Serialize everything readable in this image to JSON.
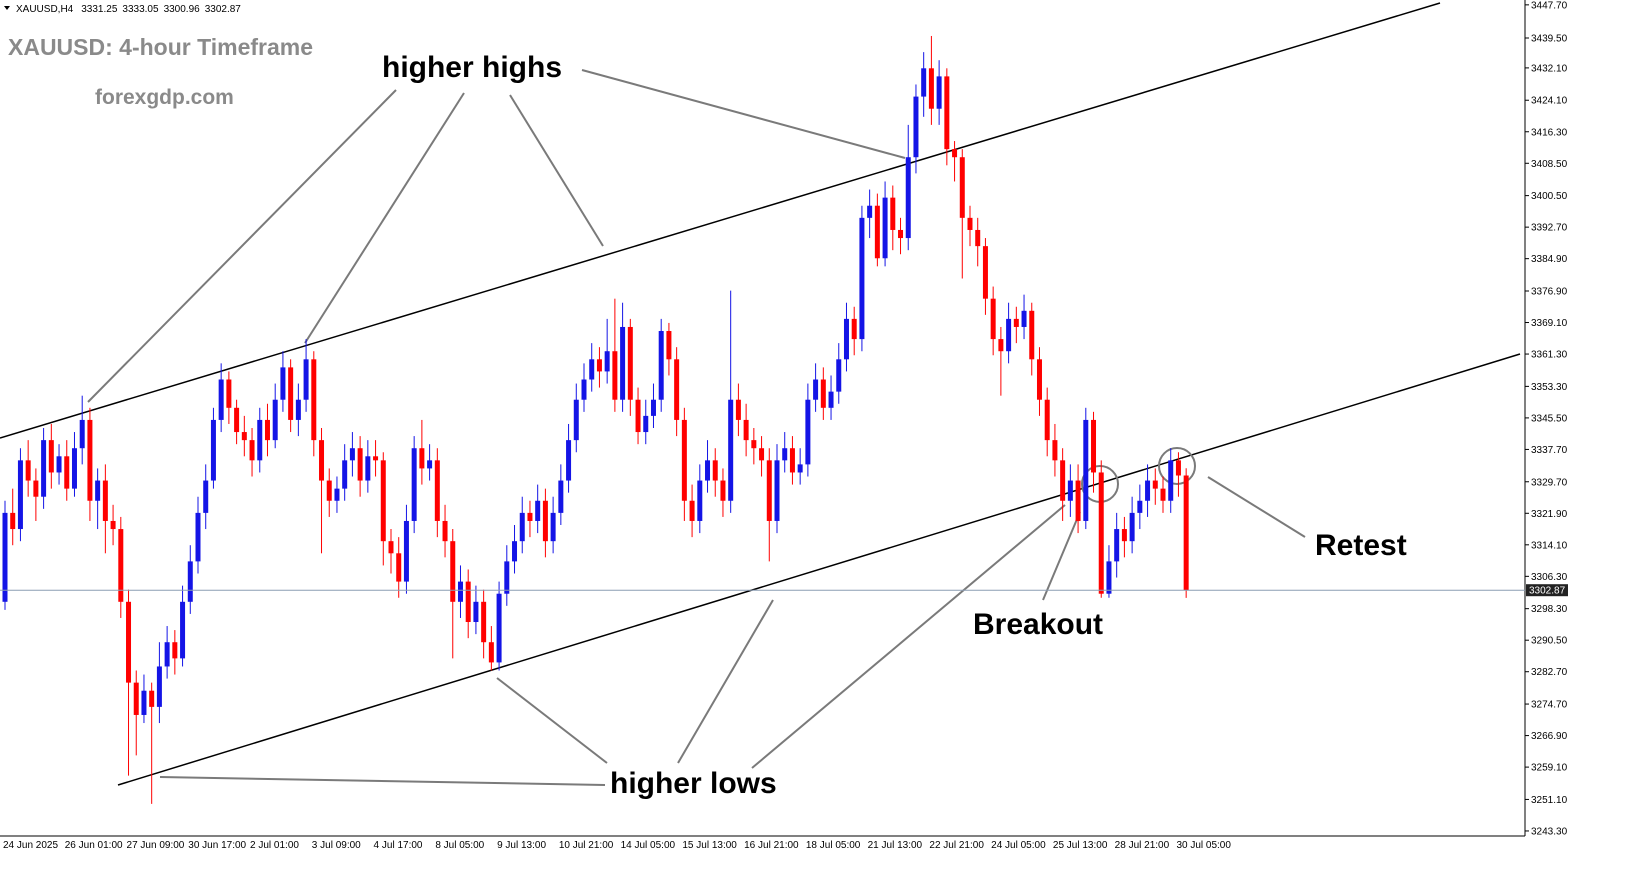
{
  "chart_data": {
    "type": "candlestick",
    "symbol": "XAUUSD,H4",
    "title": "XAUUSD: 4-hour Timeframe",
    "subtitle": "forexgdp.com",
    "annotations": {
      "higher_highs": "higher highs",
      "higher_lows": "higher lows",
      "breakout": "Breakout",
      "retest": "Retest"
    },
    "up_color": "#1414e6",
    "down_color": "#ff0000",
    "price_line_color": "#8c9db3",
    "categories": [
      "24 Jun 2025",
      null,
      null,
      null,
      null,
      null,
      null,
      null,
      "26 Jun 01:00",
      null,
      null,
      null,
      null,
      null,
      null,
      null,
      "27 Jun 09:00",
      null,
      null,
      null,
      null,
      null,
      null,
      null,
      "30 Jun 17:00",
      null,
      null,
      null,
      null,
      null,
      null,
      null,
      "2 Jul 01:00",
      null,
      null,
      null,
      null,
      null,
      null,
      null,
      "3 Jul 09:00",
      null,
      null,
      null,
      null,
      null,
      null,
      null,
      "4 Jul 17:00",
      null,
      null,
      null,
      null,
      null,
      null,
      null,
      "8 Jul 05:00",
      null,
      null,
      null,
      null,
      null,
      null,
      null,
      "9 Jul 13:00",
      null,
      null,
      null,
      null,
      null,
      null,
      null,
      "10 Jul 21:00",
      null,
      null,
      null,
      null,
      null,
      null,
      null,
      "14 Jul 05:00",
      null,
      null,
      null,
      null,
      null,
      null,
      null,
      "15 Jul 13:00",
      null,
      null,
      null,
      null,
      null,
      null,
      null,
      "16 Jul 21:00",
      null,
      null,
      null,
      null,
      null,
      null,
      null,
      "18 Jul 05:00",
      null,
      null,
      null,
      null,
      null,
      null,
      null,
      "21 Jul 13:00",
      null,
      null,
      null,
      null,
      null,
      null,
      null,
      "22 Jul 21:00",
      null,
      null,
      null,
      null,
      null,
      null,
      null,
      "24 Jul 05:00",
      null,
      null,
      null,
      null,
      null,
      null,
      null,
      "25 Jul 13:00",
      null,
      null,
      null,
      null,
      null,
      null,
      null,
      "28 Jul 21:00",
      null,
      null,
      null,
      null,
      null,
      null,
      null,
      "30 Jul 05:00",
      null
    ],
    "open": [
      3300,
      3322,
      3318,
      3335,
      3330,
      3326,
      3340,
      3332,
      3336,
      3328,
      3338,
      3345,
      3325,
      3330,
      3320,
      3318,
      3300,
      3280,
      3272,
      3278,
      3274,
      3284,
      3290,
      3286,
      3300,
      3310,
      3322,
      3330,
      3345,
      3355,
      3348,
      3342,
      3340,
      3335,
      3345,
      3340,
      3350,
      3358,
      3345,
      3350,
      3360,
      3340,
      3330,
      3325,
      3328,
      3335,
      3338,
      3330,
      3336,
      3335,
      3315,
      3312,
      3305,
      3320,
      3338,
      3333,
      3335,
      3320,
      3315,
      3300,
      3305,
      3295,
      3300,
      3290,
      3285,
      3302,
      3310,
      3315,
      3322,
      3320,
      3325,
      3315,
      3322,
      3330,
      3340,
      3350,
      3355,
      3360,
      3357,
      3362,
      3350,
      3368,
      3350,
      3342,
      3346,
      3350,
      3367,
      3360,
      3345,
      3325,
      3320,
      3330,
      3335,
      3330,
      3325,
      3350,
      3345,
      3340,
      3338,
      3335,
      3320,
      3335,
      3338,
      3332,
      3334,
      3350,
      3355,
      3348,
      3352,
      3360,
      3370,
      3365,
      3395,
      3398,
      3385,
      3400,
      3392,
      3390,
      3410,
      3425,
      3432,
      3422,
      3430,
      3412,
      3410,
      3395,
      3392,
      3388,
      3375,
      3365,
      3362,
      3370,
      3368,
      3372,
      3360,
      3350,
      3340,
      3335,
      3325,
      3330,
      3320,
      3345,
      3332,
      3302,
      3310,
      3318,
      3315,
      3322,
      3325,
      3330,
      3328,
      3325,
      3335,
      3331.25
    ],
    "high": [
      3325,
      3328,
      3338,
      3340,
      3333,
      3343,
      3344,
      3339,
      3340,
      3342,
      3351,
      3348,
      3333,
      3334,
      3324,
      3321,
      3303,
      3283,
      3282,
      3280,
      3290,
      3294,
      3293,
      3304,
      3314,
      3326,
      3334,
      3348,
      3359,
      3357,
      3350,
      3346,
      3343,
      3348,
      3349,
      3354,
      3362,
      3360,
      3354,
      3365,
      3362,
      3343,
      3333,
      3331,
      3339,
      3342,
      3341,
      3340,
      3340,
      3337,
      3318,
      3316,
      3324,
      3341,
      3345,
      3339,
      3338,
      3324,
      3318,
      3309,
      3308,
      3304,
      3303,
      3294,
      3305,
      3314,
      3319,
      3326,
      3325,
      3329,
      3328,
      3326,
      3334,
      3344,
      3354,
      3359,
      3364,
      3363,
      3370,
      3375,
      3374,
      3370,
      3353,
      3350,
      3354,
      3370,
      3369,
      3363,
      3348,
      3329,
      3334,
      3340,
      3338,
      3333,
      3377,
      3354,
      3349,
      3343,
      3341,
      3338,
      3339,
      3342,
      3341,
      3338,
      3354,
      3359,
      3358,
      3356,
      3364,
      3374,
      3373,
      3398,
      3402,
      3401,
      3404,
      3403,
      3395,
      3418,
      3428,
      3436,
      3440,
      3434,
      3432,
      3414,
      3412,
      3398,
      3395,
      3390,
      3378,
      3368,
      3374,
      3373,
      3376,
      3374,
      3363,
      3353,
      3344,
      3338,
      3334,
      3334,
      3348,
      3347,
      3335,
      3314,
      3322,
      3321,
      3326,
      3329,
      3334,
      3333,
      3331,
      3338,
      3337,
      3333.05
    ],
    "low": [
      3298,
      3314,
      3315,
      3326,
      3320,
      3323,
      3328,
      3329,
      3325,
      3326,
      3334,
      3320,
      3318,
      3312,
      3314,
      3296,
      3257,
      3262,
      3270,
      3250,
      3270,
      3281,
      3282,
      3284,
      3297,
      3307,
      3318,
      3328,
      3342,
      3344,
      3339,
      3336,
      3331,
      3332,
      3336,
      3338,
      3347,
      3342,
      3341,
      3347,
      3336,
      3312,
      3321,
      3322,
      3325,
      3331,
      3326,
      3327,
      3331,
      3309,
      3307,
      3301,
      3302,
      3317,
      3329,
      3330,
      3316,
      3311,
      3286,
      3296,
      3291,
      3292,
      3286,
      3283,
      3283,
      3299,
      3307,
      3312,
      3316,
      3317,
      3311,
      3312,
      3319,
      3327,
      3337,
      3347,
      3352,
      3353,
      3354,
      3347,
      3347,
      3346,
      3339,
      3339,
      3343,
      3347,
      3356,
      3341,
      3320,
      3316,
      3317,
      3327,
      3326,
      3321,
      3322,
      3341,
      3336,
      3334,
      3331,
      3310,
      3317,
      3332,
      3329,
      3329,
      3331,
      3347,
      3345,
      3345,
      3349,
      3357,
      3361,
      3362,
      3390,
      3383,
      3383,
      3387,
      3386,
      3387,
      3406,
      3420,
      3418,
      3418,
      3408,
      3404,
      3380,
      3388,
      3383,
      3371,
      3361,
      3351,
      3359,
      3364,
      3365,
      3356,
      3346,
      3336,
      3331,
      3320,
      3321,
      3317,
      3318,
      3327,
      3301,
      3301,
      3306,
      3311,
      3312,
      3318,
      3321,
      3324,
      3322,
      3322,
      3326,
      3300.96
    ],
    "close": [
      3322,
      3318,
      3335,
      3330,
      3326,
      3340,
      3332,
      3336,
      3328,
      3338,
      3345,
      3325,
      3330,
      3320,
      3318,
      3300,
      3280,
      3272,
      3278,
      3274,
      3284,
      3290,
      3286,
      3300,
      3310,
      3322,
      3330,
      3345,
      3355,
      3348,
      3342,
      3340,
      3335,
      3345,
      3340,
      3350,
      3358,
      3345,
      3350,
      3360,
      3340,
      3330,
      3325,
      3328,
      3335,
      3338,
      3330,
      3336,
      3335,
      3315,
      3312,
      3305,
      3320,
      3338,
      3333,
      3335,
      3320,
      3315,
      3300,
      3305,
      3295,
      3300,
      3290,
      3285,
      3302,
      3310,
      3315,
      3322,
      3320,
      3325,
      3315,
      3322,
      3330,
      3340,
      3350,
      3355,
      3360,
      3357,
      3362,
      3350,
      3368,
      3350,
      3342,
      3346,
      3350,
      3367,
      3360,
      3345,
      3325,
      3320,
      3330,
      3335,
      3330,
      3325,
      3350,
      3345,
      3340,
      3338,
      3335,
      3320,
      3335,
      3338,
      3332,
      3334,
      3350,
      3355,
      3348,
      3352,
      3360,
      3370,
      3365,
      3395,
      3398,
      3385,
      3400,
      3392,
      3390,
      3410,
      3425,
      3432,
      3422,
      3430,
      3412,
      3410,
      3395,
      3392,
      3388,
      3375,
      3365,
      3362,
      3370,
      3368,
      3372,
      3360,
      3350,
      3340,
      3335,
      3325,
      3330,
      3320,
      3345,
      3332,
      3302,
      3310,
      3318,
      3315,
      3322,
      3325,
      3330,
      3328,
      3325,
      3335,
      3331.25,
      3302.87
    ],
    "ylim": [
      3242.3,
      3448.9
    ],
    "yticks": [
      {
        "value": 3447.7,
        "label": "3447.70"
      },
      {
        "value": 3439.5,
        "label": "3439.50"
      },
      {
        "value": 3432.1,
        "label": "3432.10"
      },
      {
        "value": 3424.1,
        "label": "3424.10"
      },
      {
        "value": 3416.3,
        "label": "3416.30"
      },
      {
        "value": 3408.5,
        "label": "3408.50"
      },
      {
        "value": 3400.5,
        "label": "3400.50"
      },
      {
        "value": 3392.7,
        "label": "3392.70"
      },
      {
        "value": 3384.9,
        "label": "3384.90"
      },
      {
        "value": 3376.9,
        "label": "3376.90"
      },
      {
        "value": 3369.1,
        "label": "3369.10"
      },
      {
        "value": 3361.3,
        "label": "3361.30"
      },
      {
        "value": 3353.3,
        "label": "3353.30"
      },
      {
        "value": 3345.5,
        "label": "3345.50"
      },
      {
        "value": 3337.7,
        "label": "3337.70"
      },
      {
        "value": 3329.7,
        "label": "3329.70"
      },
      {
        "value": 3321.9,
        "label": "3321.90"
      },
      {
        "value": 3314.1,
        "label": "3314.10"
      },
      {
        "value": 3306.3,
        "label": "3306.30"
      },
      {
        "value": 3298.3,
        "label": "3298.30"
      },
      {
        "value": 3290.5,
        "label": "3290.50"
      },
      {
        "value": 3282.7,
        "label": "3282.70"
      },
      {
        "value": 3274.7,
        "label": "3274.70"
      },
      {
        "value": 3266.9,
        "label": "3266.90"
      },
      {
        "value": 3259.1,
        "label": "3259.10"
      },
      {
        "value": 3251.1,
        "label": "3251.10"
      },
      {
        "value": 3243.3,
        "label": "3243.30"
      }
    ],
    "grid": false
  }
}
